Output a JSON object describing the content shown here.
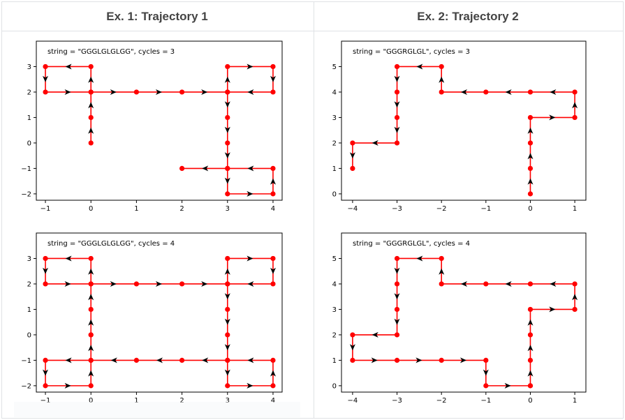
{
  "headers": [
    "Ex. 1: Trajectory 1",
    "Ex. 2: Trajectory 2"
  ],
  "colors": {
    "line": "#ff0000",
    "marker": "#ff0000",
    "arrow": "#000000",
    "frame": "#000000"
  },
  "chart_data": [
    {
      "type": "line",
      "annotation": "string = \"GGGLGLGLGG\", cycles = 3",
      "xlim": [
        -1.2,
        4.2
      ],
      "ylim": [
        -2.25,
        4.0
      ],
      "xticks": [
        -1,
        0,
        1,
        2,
        3,
        4
      ],
      "yticks": [
        -2,
        -1,
        0,
        1,
        2,
        3
      ],
      "xtick_labels": [
        "−1",
        "0",
        "1",
        "2",
        "3",
        "4"
      ],
      "ytick_labels": [
        "−2",
        "−1",
        "0",
        "1",
        "2",
        "3"
      ],
      "path": [
        [
          0,
          0
        ],
        [
          0,
          1
        ],
        [
          0,
          2
        ],
        [
          0,
          3
        ],
        [
          -1,
          3
        ],
        [
          -1,
          2
        ],
        [
          0,
          2
        ],
        [
          1,
          2
        ],
        [
          2,
          2
        ],
        [
          3,
          2
        ],
        [
          3,
          3
        ],
        [
          4,
          3
        ],
        [
          4,
          2
        ],
        [
          3,
          2
        ],
        [
          3,
          1
        ],
        [
          3,
          0
        ],
        [
          3,
          -1
        ],
        [
          3,
          -2
        ],
        [
          4,
          -2
        ],
        [
          4,
          -1
        ],
        [
          3,
          -1
        ],
        [
          2,
          -1
        ]
      ]
    },
    {
      "type": "line",
      "annotation": "string = \"GGGRGLGL\", cycles = 3",
      "xlim": [
        -4.25,
        1.25
      ],
      "ylim": [
        -0.25,
        6.0
      ],
      "xticks": [
        -4,
        -3,
        -2,
        -1,
        0,
        1
      ],
      "yticks": [
        0,
        1,
        2,
        3,
        4,
        5
      ],
      "xtick_labels": [
        "−4",
        "−3",
        "−2",
        "−1",
        "0",
        "1"
      ],
      "ytick_labels": [
        "0",
        "1",
        "2",
        "3",
        "4",
        "5"
      ],
      "path": [
        [
          0,
          0
        ],
        [
          0,
          1
        ],
        [
          0,
          2
        ],
        [
          0,
          3
        ],
        [
          1,
          3
        ],
        [
          1,
          4
        ],
        [
          0,
          4
        ],
        [
          -1,
          4
        ],
        [
          -2,
          4
        ],
        [
          -2,
          5
        ],
        [
          -3,
          5
        ],
        [
          -3,
          4
        ],
        [
          -3,
          3
        ],
        [
          -3,
          2
        ],
        [
          -4,
          2
        ],
        [
          -4,
          1
        ]
      ]
    },
    {
      "type": "line",
      "annotation": "string = \"GGGLGLGLGG\", cycles = 4",
      "xlim": [
        -1.2,
        4.2
      ],
      "ylim": [
        -2.25,
        4.0
      ],
      "xticks": [
        -1,
        0,
        1,
        2,
        3,
        4
      ],
      "yticks": [
        -2,
        -1,
        0,
        1,
        2,
        3
      ],
      "xtick_labels": [
        "−1",
        "0",
        "1",
        "2",
        "3",
        "4"
      ],
      "ytick_labels": [
        "−2",
        "−1",
        "0",
        "1",
        "2",
        "3"
      ],
      "path": [
        [
          0,
          0
        ],
        [
          0,
          1
        ],
        [
          0,
          2
        ],
        [
          0,
          3
        ],
        [
          -1,
          3
        ],
        [
          -1,
          2
        ],
        [
          0,
          2
        ],
        [
          1,
          2
        ],
        [
          2,
          2
        ],
        [
          3,
          2
        ],
        [
          3,
          3
        ],
        [
          4,
          3
        ],
        [
          4,
          2
        ],
        [
          3,
          2
        ],
        [
          3,
          1
        ],
        [
          3,
          0
        ],
        [
          3,
          -1
        ],
        [
          3,
          -2
        ],
        [
          4,
          -2
        ],
        [
          4,
          -1
        ],
        [
          3,
          -1
        ],
        [
          2,
          -1
        ],
        [
          1,
          -1
        ],
        [
          0,
          -1
        ],
        [
          -1,
          -1
        ],
        [
          -1,
          -2
        ],
        [
          0,
          -2
        ],
        [
          0,
          -1
        ],
        [
          0,
          0
        ]
      ]
    },
    {
      "type": "line",
      "annotation": "string = \"GGGRGLGL\", cycles = 4",
      "xlim": [
        -4.25,
        1.25
      ],
      "ylim": [
        -0.25,
        6.0
      ],
      "xticks": [
        -4,
        -3,
        -2,
        -1,
        0,
        1
      ],
      "yticks": [
        0,
        1,
        2,
        3,
        4,
        5
      ],
      "xtick_labels": [
        "−4",
        "−3",
        "−2",
        "−1",
        "0",
        "1"
      ],
      "ytick_labels": [
        "0",
        "1",
        "2",
        "3",
        "4",
        "5"
      ],
      "path": [
        [
          0,
          0
        ],
        [
          0,
          1
        ],
        [
          0,
          2
        ],
        [
          0,
          3
        ],
        [
          1,
          3
        ],
        [
          1,
          4
        ],
        [
          0,
          4
        ],
        [
          -1,
          4
        ],
        [
          -2,
          4
        ],
        [
          -2,
          5
        ],
        [
          -3,
          5
        ],
        [
          -3,
          4
        ],
        [
          -3,
          3
        ],
        [
          -3,
          2
        ],
        [
          -4,
          2
        ],
        [
          -4,
          1
        ],
        [
          -3,
          1
        ],
        [
          -2,
          1
        ],
        [
          -1,
          1
        ],
        [
          -1,
          0
        ],
        [
          0,
          0
        ]
      ]
    }
  ]
}
